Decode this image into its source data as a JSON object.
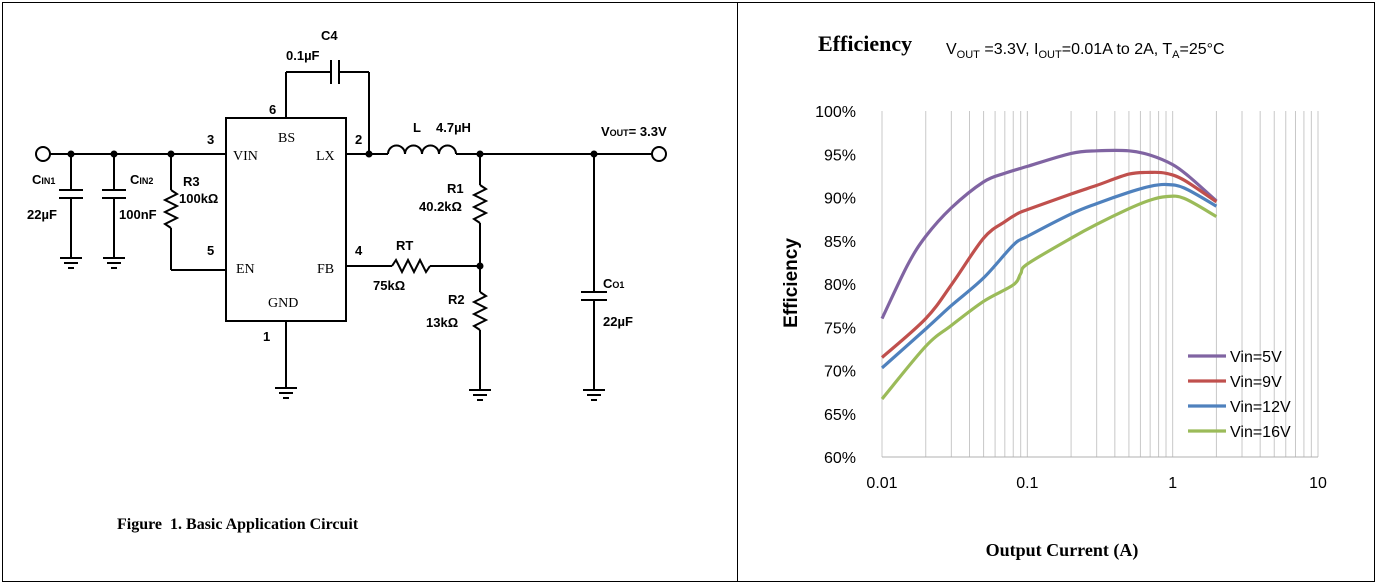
{
  "circuit": {
    "caption": "Figure  1. Basic Application Circuit",
    "ic_pins": {
      "vin": "VIN",
      "bs": "BS",
      "lx": "LX",
      "en": "EN",
      "fb": "FB",
      "gnd": "GND",
      "num_vin": "3",
      "num_bs": "6",
      "num_lx": "2",
      "num_en": "5",
      "num_fb": "4",
      "num_gnd": "1"
    },
    "components": {
      "c4_name": "C4",
      "c4_value": "0.1µF",
      "l_name": "L",
      "l_value": "4.7µH",
      "vout_main": "V",
      "vout_sub": "OUT",
      "vout_value": "= 3.3V",
      "cin1_main": "C",
      "cin1_sub": "IN1",
      "cin1_value": "22µF",
      "cin2_main": "C",
      "cin2_sub": "IN2",
      "cin2_value": "100nF",
      "r3_name": "R3",
      "r3_value": "100kΩ",
      "r1_name": "R1",
      "r1_value": "40.2kΩ",
      "rt_name": "RT",
      "rt_value": "75kΩ",
      "r2_name": "R2",
      "r2_value": "13kΩ",
      "co1_main": "C",
      "co1_sub": "O1",
      "co1_value": "22µF"
    }
  },
  "chart_data": {
    "type": "line",
    "title": "Efficiency",
    "subtitle_parts": [
      "V",
      "OUT",
      " =3.3V, I",
      "OUT",
      "=0.01A to 2A, T",
      "A",
      "=25°C"
    ],
    "xlabel": "Output Current (A)",
    "ylabel": "Efficiency",
    "x_scale": "log",
    "xlim": [
      0.01,
      10
    ],
    "ylim": [
      60,
      100
    ],
    "x_tick_labels": [
      "0.01",
      "0.1",
      "1",
      "10"
    ],
    "y_tick_labels": [
      "100%",
      "95%",
      "90%",
      "85%",
      "80%",
      "75%",
      "70%",
      "65%",
      "60%"
    ],
    "y_ticks": [
      100,
      95,
      90,
      85,
      80,
      75,
      70,
      65,
      60
    ],
    "grid": "vertical",
    "legend_position": "bottom-right",
    "series": [
      {
        "name": "Vin=5V",
        "color": "#8064a2",
        "x": [
          0.01,
          0.015,
          0.02,
          0.03,
          0.05,
          0.07,
          0.1,
          0.2,
          0.3,
          0.5,
          0.7,
          1.0,
          1.3,
          2.0
        ],
        "y": [
          76,
          82.2,
          85.5,
          88.8,
          91.8,
          92.8,
          93.6,
          95.1,
          95.4,
          95.4,
          94.9,
          93.8,
          92.4,
          89.6
        ]
      },
      {
        "name": "Vin=9V",
        "color": "#c0504d",
        "x": [
          0.01,
          0.02,
          0.03,
          0.05,
          0.07,
          0.085,
          0.1,
          0.2,
          0.3,
          0.5,
          0.7,
          0.9,
          1.2,
          2.0
        ],
        "y": [
          71.5,
          76,
          79.9,
          85.3,
          87.2,
          88.1,
          88.6,
          90.4,
          91.4,
          92.7,
          92.9,
          92.8,
          92.0,
          89.5
        ]
      },
      {
        "name": "Vin=12V",
        "color": "#4f81bd",
        "x": [
          0.01,
          0.02,
          0.03,
          0.05,
          0.08,
          0.1,
          0.2,
          0.3,
          0.5,
          0.7,
          0.9,
          1.2,
          2.0
        ],
        "y": [
          70.3,
          74.8,
          77.5,
          80.7,
          84.5,
          85.5,
          88.1,
          89.3,
          90.6,
          91.3,
          91.5,
          91.1,
          89.0
        ]
      },
      {
        "name": "Vin=16V",
        "color": "#9bbb59",
        "x": [
          0.01,
          0.02,
          0.03,
          0.05,
          0.08,
          0.09,
          0.1,
          0.2,
          0.3,
          0.5,
          0.7,
          0.9,
          1.2,
          2.0
        ],
        "y": [
          66.7,
          72.8,
          75.2,
          78,
          79.9,
          81.2,
          82.3,
          85.3,
          86.9,
          88.7,
          89.7,
          90.1,
          89.9,
          87.8
        ]
      }
    ]
  }
}
